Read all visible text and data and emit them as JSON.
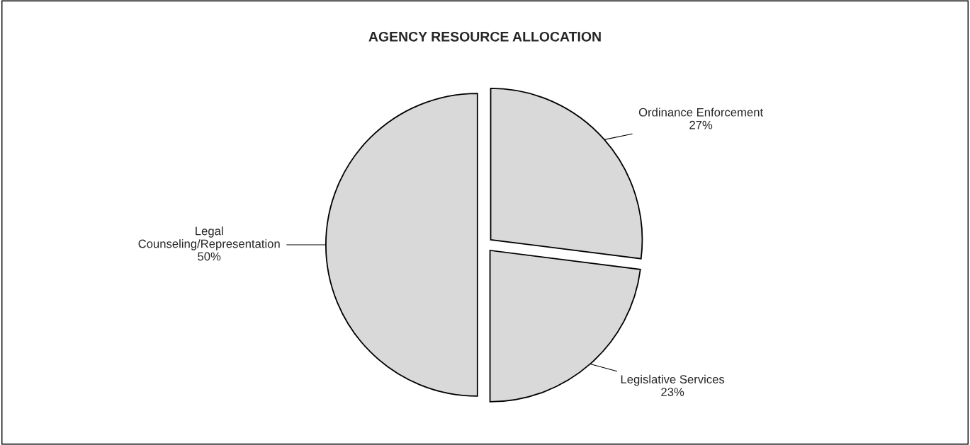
{
  "chart_data": {
    "type": "pie",
    "title": "AGENCY RESOURCE ALLOCATION",
    "categories": [
      "Ordinance Enforcement",
      "Legislative Services",
      "Legal Counseling/Representation"
    ],
    "values": [
      27,
      23,
      50
    ],
    "value_labels": [
      "27%",
      "23%",
      "50%"
    ],
    "colors": [
      "#d9d9d9",
      "#d9d9d9",
      "#d9d9d9"
    ],
    "legend": false
  }
}
